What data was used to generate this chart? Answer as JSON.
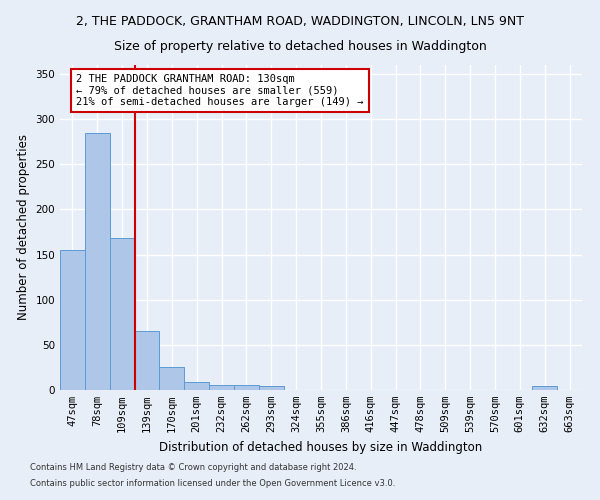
{
  "title_line1": "2, THE PADDOCK, GRANTHAM ROAD, WADDINGTON, LINCOLN, LN5 9NT",
  "title_line2": "Size of property relative to detached houses in Waddington",
  "xlabel": "Distribution of detached houses by size in Waddington",
  "ylabel": "Number of detached properties",
  "footnote1": "Contains HM Land Registry data © Crown copyright and database right 2024.",
  "footnote2": "Contains public sector information licensed under the Open Government Licence v3.0.",
  "categories": [
    "47sqm",
    "78sqm",
    "109sqm",
    "139sqm",
    "170sqm",
    "201sqm",
    "232sqm",
    "262sqm",
    "293sqm",
    "324sqm",
    "355sqm",
    "386sqm",
    "416sqm",
    "447sqm",
    "478sqm",
    "509sqm",
    "539sqm",
    "570sqm",
    "601sqm",
    "632sqm",
    "663sqm"
  ],
  "values": [
    155,
    285,
    168,
    65,
    25,
    9,
    6,
    5,
    4,
    0,
    0,
    0,
    0,
    0,
    0,
    0,
    0,
    0,
    0,
    4,
    0
  ],
  "bar_color": "#aec6e8",
  "bar_edge_color": "#5b9bd5",
  "vline_x": 2.5,
  "vline_color": "#cc0000",
  "annotation_text": "2 THE PADDOCK GRANTHAM ROAD: 130sqm\n← 79% of detached houses are smaller (559)\n21% of semi-detached houses are larger (149) →",
  "annotation_box_color": "#ffffff",
  "annotation_box_edge": "#cc0000",
  "ylim": [
    0,
    360
  ],
  "yticks": [
    0,
    50,
    100,
    150,
    200,
    250,
    300,
    350
  ],
  "bg_color": "#e8eef8",
  "grid_color": "#ffffff",
  "title_fontsize": 9,
  "subtitle_fontsize": 9,
  "axis_label_fontsize": 8.5,
  "tick_fontsize": 7.5,
  "footnote_fontsize": 6.0
}
